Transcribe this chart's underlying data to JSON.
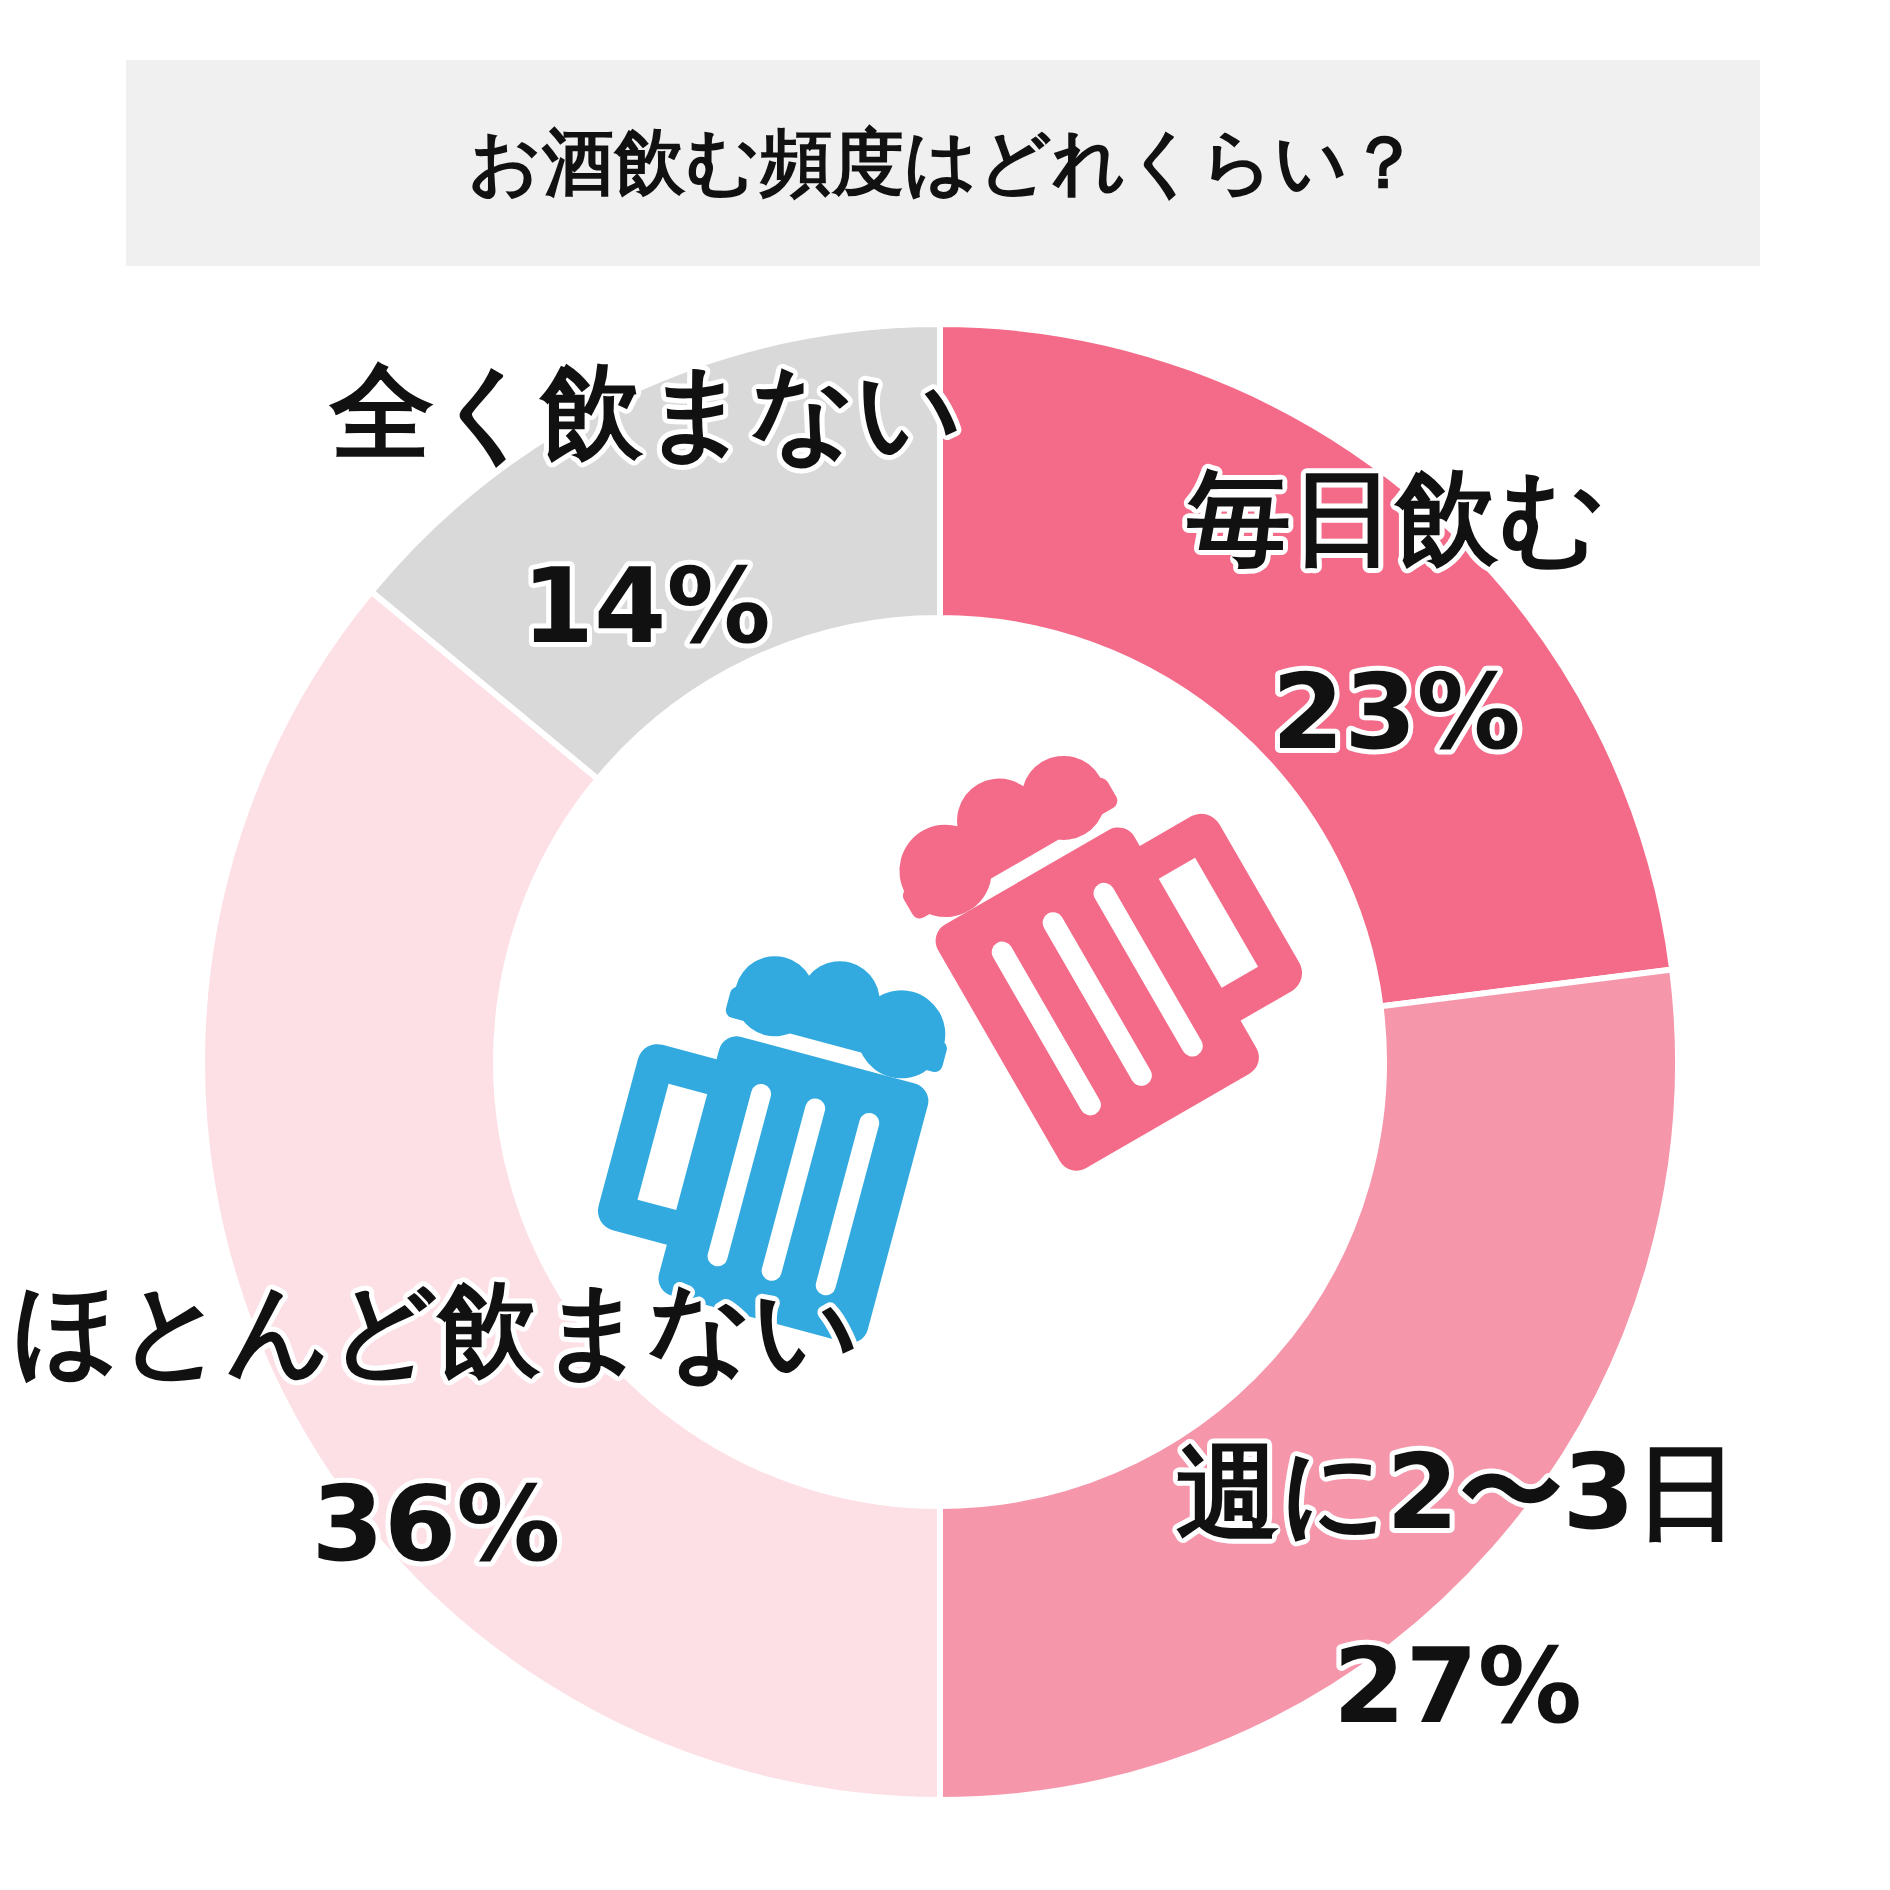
{
  "chart_data": {
    "type": "donut",
    "title": "お酒飲む頻度はどれくらい？",
    "categories": [
      "毎日飲む",
      "週に2〜3日",
      "ほとんど飲まない",
      "全く飲まない"
    ],
    "values": [
      23,
      27,
      36,
      14
    ],
    "colors": [
      "#f46b89",
      "#f596ab",
      "#fde0e6",
      "#d9d9d9"
    ],
    "value_labels": [
      "23%",
      "27%",
      "36%",
      "14%"
    ]
  }
}
